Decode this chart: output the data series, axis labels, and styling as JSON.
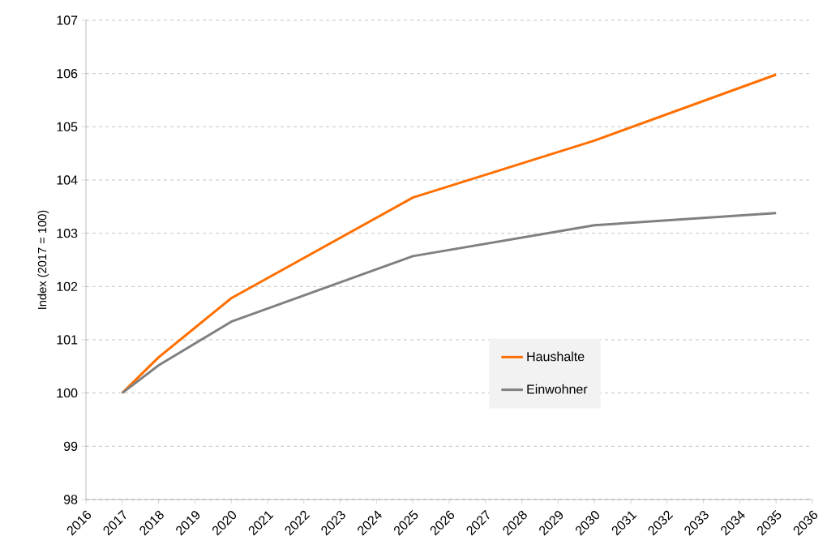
{
  "chart_data": {
    "type": "line",
    "ylabel": "Index  (2017 = 100)",
    "x": [
      2017,
      2018,
      2020,
      2025,
      2030,
      2035
    ],
    "series": [
      {
        "name": "Haushalte",
        "color": "#ff6f00",
        "values": [
          100,
          100.67,
          101.78,
          103.67,
          104.74,
          105.98
        ]
      },
      {
        "name": "Einwohner",
        "color": "#808080",
        "values": [
          100,
          100.52,
          101.34,
          102.57,
          103.15,
          103.38
        ]
      }
    ],
    "xlim": [
      2016,
      2036
    ],
    "xticks": [
      2016,
      2017,
      2018,
      2019,
      2020,
      2021,
      2022,
      2023,
      2024,
      2025,
      2026,
      2027,
      2028,
      2029,
      2030,
      2031,
      2032,
      2033,
      2034,
      2035,
      2036
    ],
    "ylim": [
      98,
      107
    ],
    "yticks": [
      98,
      99,
      100,
      101,
      102,
      103,
      104,
      105,
      106,
      107
    ],
    "grid": "y",
    "legend": "right",
    "marker": "none",
    "line_style": "solid"
  }
}
